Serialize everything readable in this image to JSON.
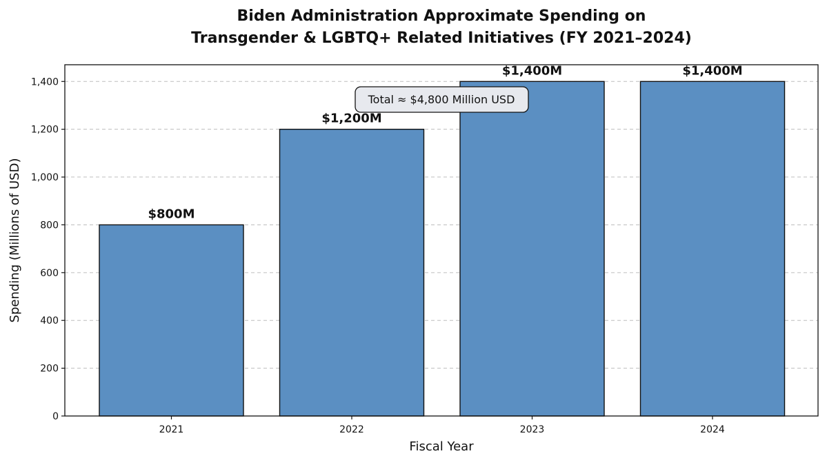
{
  "chart_data": {
    "type": "bar",
    "title": [
      "Biden Administration Approximate Spending on",
      "Transgender & LGBTQ+ Related Initiatives (FY 2021–2024)"
    ],
    "xlabel": "Fiscal Year",
    "ylabel": "Spending (Millions of USD)",
    "categories": [
      "2021",
      "2022",
      "2023",
      "2024"
    ],
    "values": [
      800,
      1200,
      1400,
      1400
    ],
    "data_labels": [
      "$800M",
      "$1,200M",
      "$1,400M",
      "$1,400M"
    ],
    "ylim": [
      0,
      1470
    ],
    "yticks": [
      0,
      200,
      400,
      600,
      800,
      1000,
      1200,
      1400
    ],
    "ytick_labels": [
      "0",
      "200",
      "400",
      "600",
      "800",
      "1,000",
      "1,200",
      "1,400"
    ],
    "grid": "y-dashed",
    "bar_color": "#5b8fc2",
    "annotation": "Total ≈ $4,800 Million USD"
  }
}
